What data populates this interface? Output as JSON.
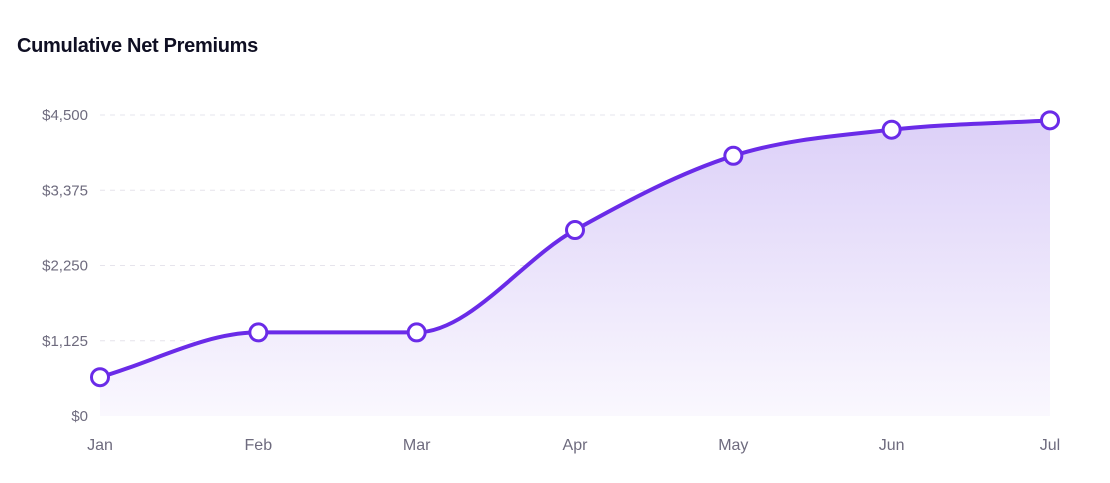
{
  "chart_data": {
    "type": "area",
    "title": "Cumulative Net Premiums",
    "xlabel": "",
    "ylabel": "",
    "categories": [
      "Jan",
      "Feb",
      "Mar",
      "Apr",
      "May",
      "Jun",
      "Jul"
    ],
    "series": [
      {
        "values": [
          580,
          1250,
          1250,
          2780,
          3890,
          4280,
          4420
        ]
      }
    ],
    "ylim": [
      0,
      4500
    ],
    "y_ticks": [
      0,
      1125,
      2250,
      3375,
      4500
    ],
    "y_tick_labels": [
      "$0",
      "$1,125",
      "$2,250",
      "$3,375",
      "$4,500"
    ],
    "grid": true,
    "legend": "none",
    "colors": {
      "line": "#6a2be8",
      "area_top": "#dcd0f8",
      "area_bottom": "#faf8fe",
      "marker_fill": "#ffffff",
      "grid": "#e6e4ec",
      "tick_text": "#6e6b7e",
      "title_text": "#0f0f23"
    }
  }
}
